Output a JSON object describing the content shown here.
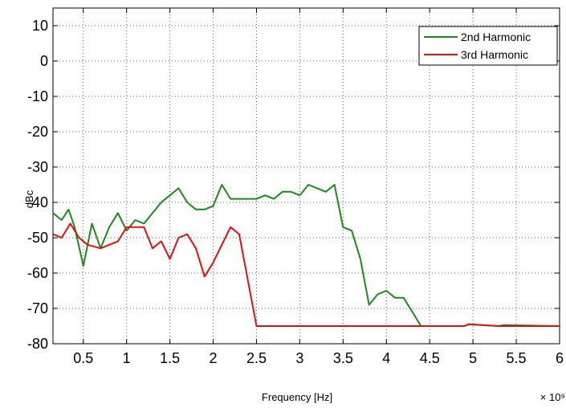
{
  "chart_data": {
    "type": "line",
    "title": "",
    "xlabel": "Frequency [Hz]",
    "ylabel": "dBc",
    "x_multiplier_label": "× 10⁹",
    "xlim": [
      0.15,
      6.0
    ],
    "ylim": [
      -80,
      15
    ],
    "x_ticks": [
      0.5,
      1,
      1.5,
      2,
      2.5,
      3,
      3.5,
      4,
      4.5,
      5,
      5.5,
      6
    ],
    "x_tick_labels": [
      "0.5",
      "1",
      "1.5",
      "2",
      "2.5",
      "3",
      "3.5",
      "4",
      "4.5",
      "5",
      "5.5",
      "6"
    ],
    "y_ticks": [
      -80,
      -70,
      -60,
      -50,
      -40,
      -30,
      -20,
      -10,
      0,
      10
    ],
    "y_tick_labels": [
      "-80",
      "-70",
      "-60",
      "-50",
      "-40",
      "-30",
      "-20",
      "-10",
      "0",
      "10"
    ],
    "grid": true,
    "legend_position": "top-right",
    "series": [
      {
        "name": "2nd Harmonic",
        "color": "#1a8a1a",
        "x": [
          0.15,
          0.25,
          0.33,
          0.4,
          0.5,
          0.6,
          0.7,
          0.8,
          0.9,
          1.0,
          1.1,
          1.2,
          1.3,
          1.4,
          1.5,
          1.6,
          1.7,
          1.8,
          1.9,
          2.0,
          2.1,
          2.2,
          2.3,
          2.4,
          2.5,
          2.6,
          2.7,
          2.8,
          2.9,
          3.0,
          3.1,
          3.2,
          3.3,
          3.4,
          3.5,
          3.6,
          3.7,
          3.8,
          3.9,
          4.0,
          4.1,
          4.2,
          4.3,
          4.4,
          4.9,
          4.95,
          5.3,
          5.35,
          6.0
        ],
        "y": [
          -43,
          -45,
          -42,
          -47,
          -58,
          -46,
          -53,
          -47,
          -43,
          -48,
          -45,
          -46,
          -43,
          -40,
          -38,
          -36,
          -40,
          -42,
          -42,
          -41,
          -35,
          -39,
          -39,
          -39,
          -39,
          -38,
          -39,
          -37,
          -37,
          -38,
          -35,
          -36,
          -37,
          -35,
          -47,
          -48,
          -56,
          -69,
          -66,
          -65,
          -67,
          -67,
          -71,
          -75,
          -75,
          -74.5,
          -75,
          -74.7,
          -75
        ]
      },
      {
        "name": "3rd Harmonic",
        "color": "#e01010",
        "x": [
          0.15,
          0.25,
          0.35,
          0.45,
          0.55,
          0.7,
          0.8,
          0.9,
          1.0,
          1.1,
          1.2,
          1.3,
          1.4,
          1.5,
          1.6,
          1.7,
          1.8,
          1.9,
          2.0,
          2.1,
          2.2,
          2.3,
          2.4,
          2.5,
          3.0,
          4.0,
          4.9,
          4.95,
          5.3,
          6.0
        ],
        "y": [
          -49,
          -50,
          -46,
          -50,
          -52,
          -53,
          -52,
          -51,
          -47,
          -47,
          -47,
          -53,
          -51,
          -56,
          -50,
          -49,
          -53,
          -61,
          -57,
          -52,
          -47,
          -49,
          -62,
          -75,
          -75,
          -75,
          -75,
          -74.5,
          -75,
          -75
        ]
      }
    ]
  }
}
